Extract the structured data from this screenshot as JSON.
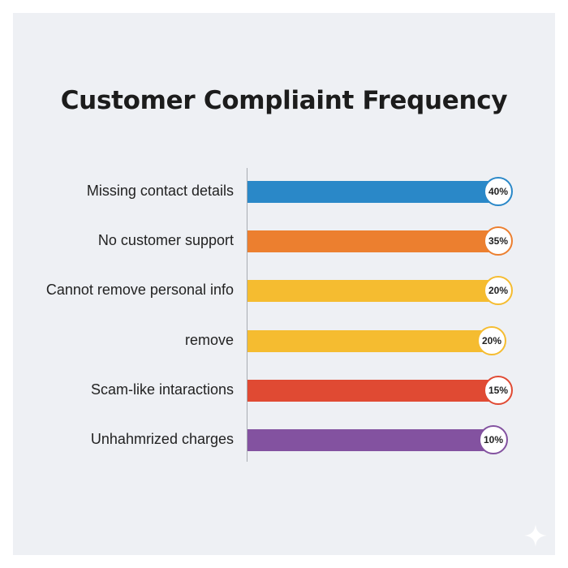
{
  "chart_data": {
    "type": "bar",
    "orientation": "horizontal",
    "title": "Customer Compliaint Frequency",
    "categories": [
      "Missing contact details",
      "No customer support",
      "Cannot remove personal info",
      "remove",
      "Scam-like intaractions",
      "Unhahmrized charges"
    ],
    "values": [
      40,
      35,
      20,
      20,
      15,
      10
    ],
    "value_labels": [
      "40%",
      "35%",
      "20%",
      "20%",
      "15%",
      "10%"
    ],
    "colors": [
      "#2a88c8",
      "#ec7f2f",
      "#f5bc30",
      "#f5bc30",
      "#e04a33",
      "#8352a0"
    ],
    "xlabel": "",
    "ylabel": "",
    "grid": false
  }
}
